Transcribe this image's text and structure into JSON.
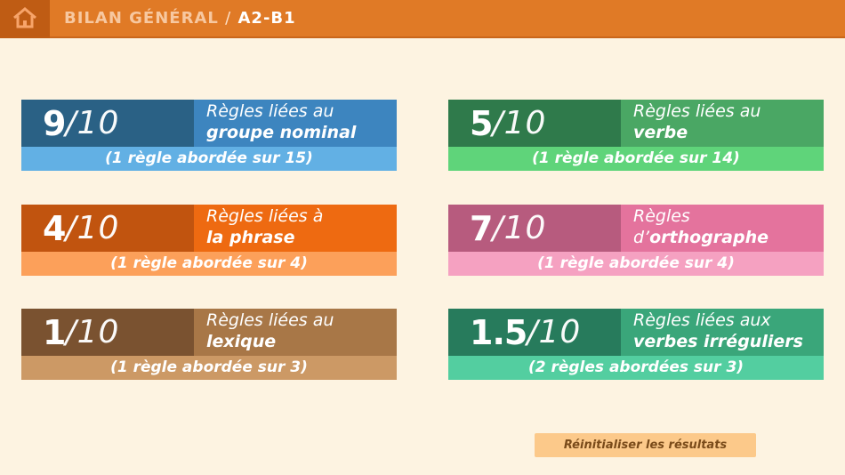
{
  "header": {
    "title_main": "BILAN GÉNÉRAL",
    "separator": "/",
    "title_level": "A2-B1",
    "home_icon": "home-icon"
  },
  "cards": [
    {
      "score": "9",
      "denominator": "/10",
      "label_line1": "Règles liées au",
      "label_line2_prefix": "",
      "label_line2_bold": "groupe nominal",
      "sub": "(1 règle abordée sur 15)",
      "colors": {
        "score": "#2a6185",
        "label": "#3d85bf",
        "sub": "#62b0e4"
      }
    },
    {
      "score": "5",
      "denominator": "/10",
      "label_line1": "Règles liées au",
      "label_line2_prefix": "",
      "label_line2_bold": "verbe",
      "sub": "(1 règle abordée sur 14)",
      "colors": {
        "score": "#2f7a4b",
        "label": "#4aa764",
        "sub": "#5fd47a"
      }
    },
    {
      "score": "4",
      "denominator": "/10",
      "label_line1": "Règles liées à",
      "label_line2_prefix": "",
      "label_line2_bold": "la phrase",
      "sub": "(1 règle abordée sur 4)",
      "colors": {
        "score": "#c1540f",
        "label": "#ee6a11",
        "sub": "#fca05a"
      }
    },
    {
      "score": "7",
      "denominator": "/10",
      "label_line1": "Règles",
      "label_line2_prefix": "d’",
      "label_line2_bold": "orthographe",
      "sub": "(1 règle abordée sur 4)",
      "colors": {
        "score": "#b75b7e",
        "label": "#e4739d",
        "sub": "#f5a1c1"
      }
    },
    {
      "score": "1",
      "denominator": "/10",
      "label_line1": "Règles liées au",
      "label_line2_prefix": "",
      "label_line2_bold": "lexique",
      "sub": "(1 règle abordée sur 3)",
      "colors": {
        "score": "#7a5230",
        "label": "#a87747",
        "sub": "#cc9965"
      }
    },
    {
      "score": "1.5",
      "denominator": "/10",
      "label_line1": "Règles liées aux",
      "label_line2_prefix": "",
      "label_line2_bold": "verbes irréguliers",
      "sub": "(2 règles abordées sur 3)",
      "colors": {
        "score": "#277b5c",
        "label": "#3aa67a",
        "sub": "#53cea0"
      }
    }
  ],
  "reset_button": {
    "label": "Réinitialiser les résultats"
  }
}
